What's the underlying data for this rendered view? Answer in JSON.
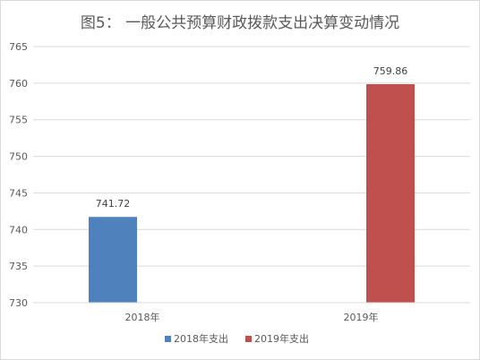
{
  "chart_data": {
    "type": "bar",
    "title": "图5：  一般公共预算财政拨款支出决算变动情况",
    "categories": [
      "2018年",
      "2019年"
    ],
    "series": [
      {
        "name": "2018年支出",
        "values": [
          741.72,
          null
        ],
        "color": "#4f81bd"
      },
      {
        "name": "2019年支出",
        "values": [
          null,
          759.86
        ],
        "color": "#c0504d"
      }
    ],
    "data_labels": [
      "741.72",
      "759.86"
    ],
    "ylim": [
      730,
      765
    ],
    "yticks": [
      730,
      735,
      740,
      745,
      750,
      755,
      760,
      765
    ],
    "xlabel": "",
    "ylabel": "",
    "grid": true,
    "legend": "bottom"
  }
}
